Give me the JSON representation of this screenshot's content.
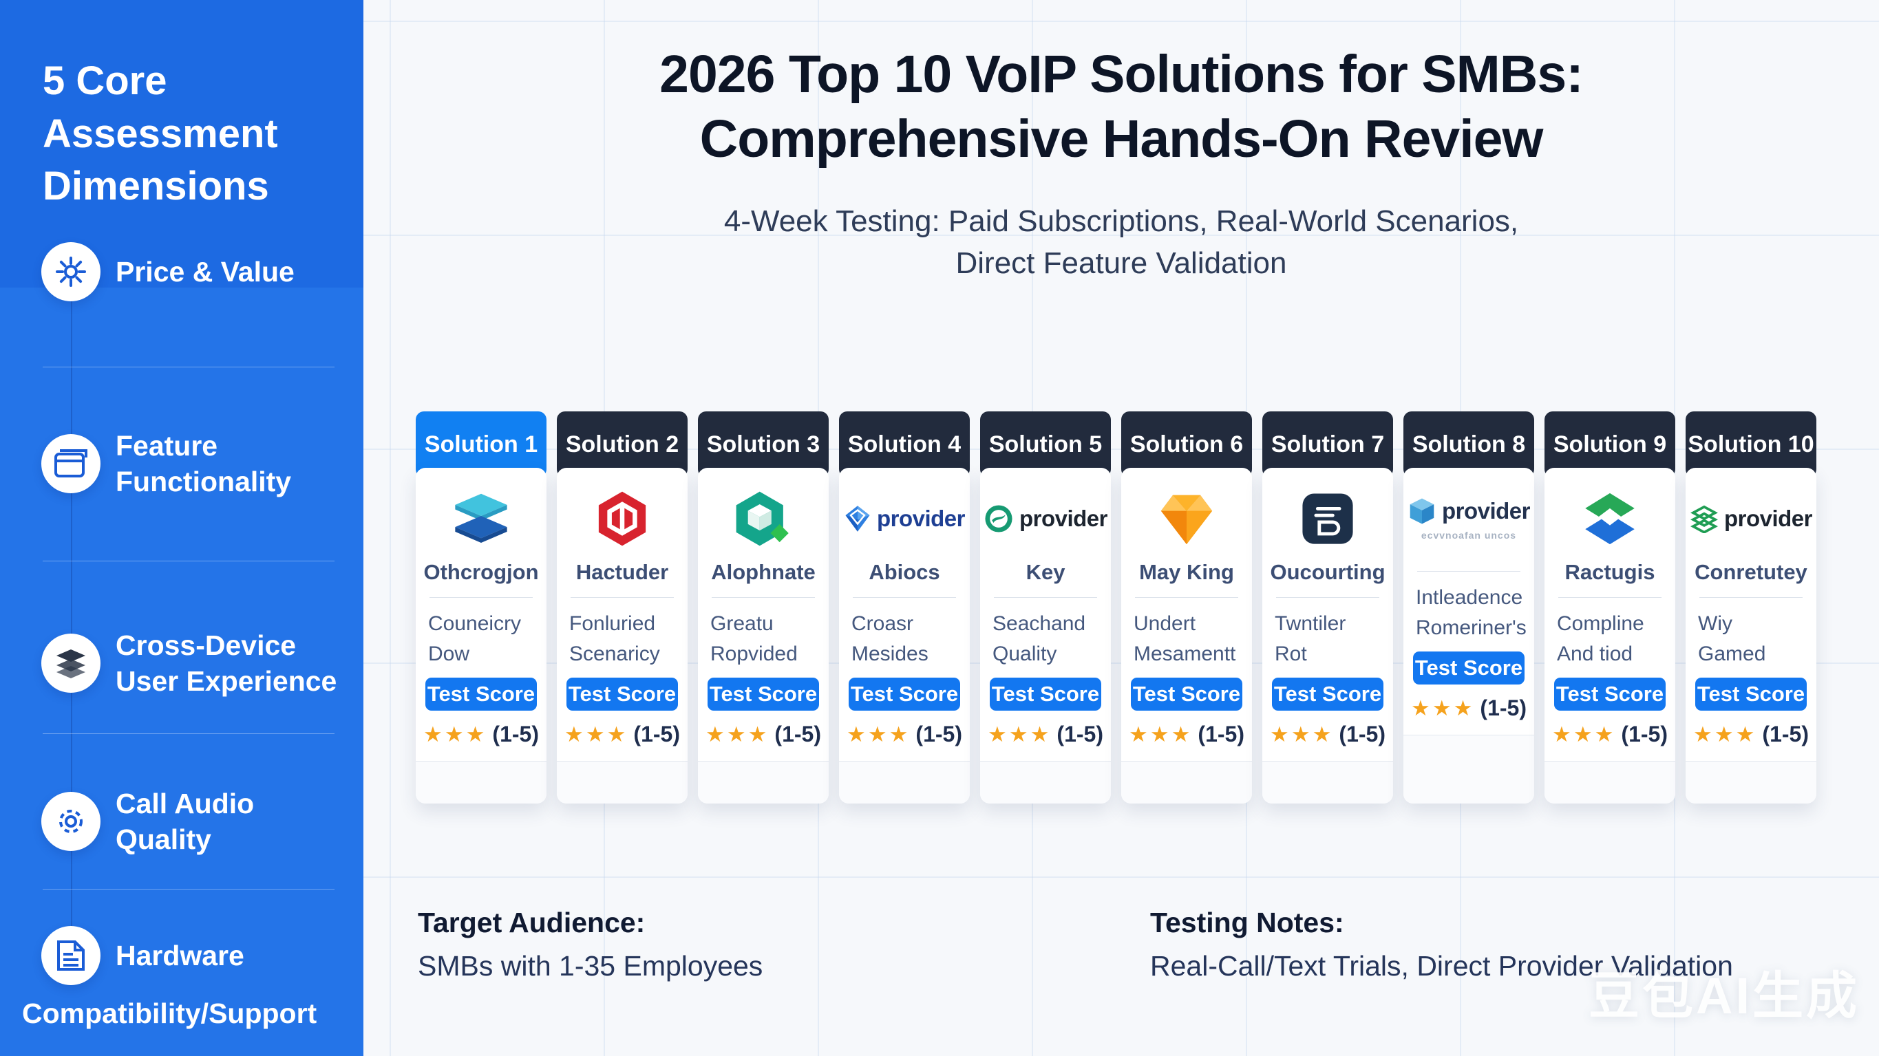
{
  "sidebar": {
    "title": "5 Core Assessment Dimensions",
    "items": [
      {
        "label": "Price & Value",
        "icon": "gear-icon"
      },
      {
        "label": "Feature Functionality",
        "icon": "window-icon"
      },
      {
        "label": "Cross-Device User Experience",
        "icon": "layers-icon"
      },
      {
        "label": "Call Audio Quality",
        "icon": "gear-icon"
      },
      {
        "label": "Hardware",
        "label2": "Compatibility/Support",
        "icon": "document-icon"
      }
    ]
  },
  "header": {
    "title_line1": "2026 Top 10 VoIP Solutions for SMBs:",
    "title_line2": "Comprehensive Hands-On Review",
    "subtitle_line1": "4-Week Testing: Paid Subscriptions, Real-World Scenarios,",
    "subtitle_line2": "Direct Feature Validation"
  },
  "cards": [
    {
      "header": "Solution 1",
      "header_color": "#1180f2",
      "logo": "stacked-layers-logo",
      "name": "Othcrogjon",
      "desc_line1": "Couneicry",
      "desc_line2": "Dow",
      "button": "Test Score",
      "stars": 3,
      "stars_display": "★★★",
      "rating_scale": "(1-5)"
    },
    {
      "header": "Solution 2",
      "header_color": "#222b3d",
      "logo": "red-hexagon-logo",
      "name": "Hactuder",
      "desc_line1": "Fonluried",
      "desc_line2": "Scenaricy",
      "button": "Test Score",
      "stars": 3,
      "stars_display": "★★★",
      "rating_scale": "(1-5)"
    },
    {
      "header": "Solution 3",
      "header_color": "#222b3d",
      "logo": "teal-hexagon-cube-logo",
      "name": "Alophnate",
      "desc_line1": "Greatu",
      "desc_line2": "Ropvided",
      "button": "Test Score",
      "stars": 3,
      "stars_display": "★★★",
      "rating_scale": "(1-5)"
    },
    {
      "header": "Solution 4",
      "header_color": "#222b3d",
      "logo": "provider-blue-gem-logo",
      "logo_text": "provider",
      "name": "Abiocs",
      "desc_line1": "Croasr",
      "desc_line2": "Mesides",
      "button": "Test Score",
      "stars": 3,
      "stars_display": "★★★",
      "rating_scale": "(1-5)"
    },
    {
      "header": "Solution 5",
      "header_color": "#222b3d",
      "logo": "provider-green-circle-logo",
      "logo_text": "provider",
      "name": "Key",
      "desc_line1": "Seachand",
      "desc_line2": "Quality",
      "button": "Test Score",
      "stars": 3,
      "stars_display": "★★★",
      "rating_scale": "(1-5)"
    },
    {
      "header": "Solution 6",
      "header_color": "#222b3d",
      "logo": "orange-gem-logo",
      "name": "May King",
      "desc_line1": "Undert",
      "desc_line2": "Mesamentt",
      "button": "Test Score",
      "stars": 3,
      "stars_display": "★★★",
      "rating_scale": "(1-5)"
    },
    {
      "header": "Solution 7",
      "header_color": "#222b3d",
      "logo": "navy-app-logo",
      "name": "Oucourting",
      "desc_line1": "Twntiler",
      "desc_line2": "Rot",
      "button": "Test Score",
      "stars": 3,
      "stars_display": "★★★",
      "rating_scale": "(1-5)"
    },
    {
      "header": "Solution 8",
      "header_color": "#222b3d",
      "logo": "provider-cube-logo",
      "logo_text": "provider",
      "tagline": "ecvvnoafan uncos",
      "name": "",
      "desc_line1": "Intleadence",
      "desc_line2": "Romeriner's",
      "button": "Test Score",
      "stars": 3,
      "stars_display": "★★★",
      "rating_scale": "(1-5)"
    },
    {
      "header": "Solution 9",
      "header_color": "#222b3d",
      "logo": "green-blue-diamonds-logo",
      "name": "Ractugis",
      "desc_line1": "Compline",
      "desc_line2": "And tiod",
      "button": "Test Score",
      "stars": 3,
      "stars_display": "★★★",
      "rating_scale": "(1-5)"
    },
    {
      "header": "Solution 10",
      "header_color": "#222b3d",
      "logo": "provider-green-stack-logo",
      "logo_text": "provider",
      "name": "Conretutey",
      "desc_line1": "Wiy",
      "desc_line2": "Gamed",
      "button": "Test Score",
      "stars": 3,
      "stars_display": "★★★",
      "rating_scale": "(1-5)"
    }
  ],
  "footer": {
    "target_label": "Target Audience:",
    "target_value": "SMBs with 1-35 Employees",
    "notes_label": "Testing Notes:",
    "notes_value": "Real-Call/Text Trials, Direct Provider Validation"
  },
  "watermark": "豆包AI生成",
  "colors": {
    "sidebar_blue": "#2474e8",
    "sidebar_top_blue": "#1d6ae2",
    "accent_blue": "#1180f2",
    "dark_header": "#222b3d",
    "button_blue": "#1377f0",
    "star_orange": "#f5a21d"
  }
}
